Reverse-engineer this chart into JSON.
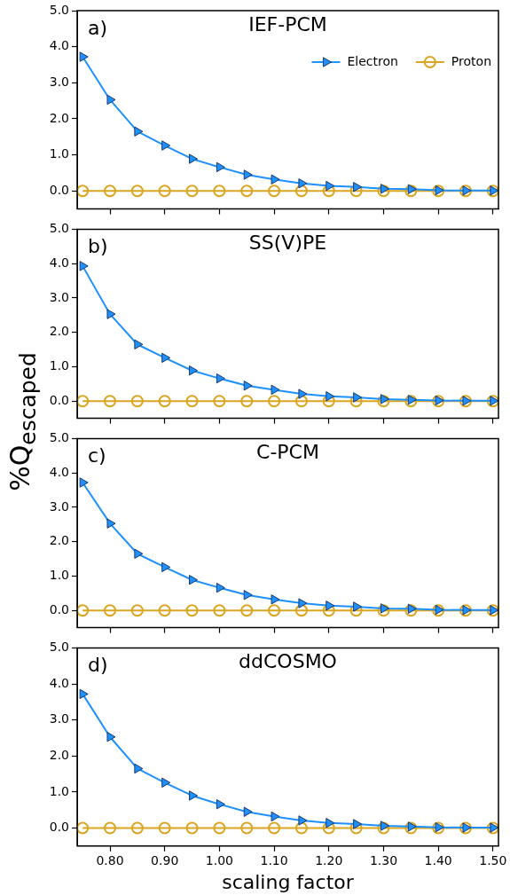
{
  "chart_data": [
    {
      "type": "line",
      "title": "IEF-PCM",
      "annotations": [
        "a)"
      ],
      "ylabel": "%Q$_{escaped}$",
      "x": [
        0.75,
        0.8,
        0.85,
        0.9,
        0.95,
        1.0,
        1.05,
        1.1,
        1.15,
        1.2,
        1.25,
        1.3,
        1.35,
        1.4,
        1.45,
        1.5
      ],
      "series": [
        {
          "name": "Electron",
          "color": "#1e90ff",
          "marker": "triangle",
          "values": [
            3.72,
            2.53,
            1.65,
            1.26,
            0.89,
            0.66,
            0.45,
            0.32,
            0.21,
            0.14,
            0.11,
            0.06,
            0.05,
            0.02,
            0.01,
            0.01
          ]
        },
        {
          "name": "Proton",
          "color": "#daa520",
          "marker": "circle",
          "values": [
            0,
            0,
            0,
            0,
            0,
            0,
            0,
            0,
            0,
            0,
            0,
            0,
            0,
            0,
            0,
            0
          ]
        }
      ],
      "xlim": [
        0.74,
        1.51
      ],
      "xticks": [
        {
          "value": 0.8,
          "label": null
        },
        {
          "value": 0.9,
          "label": null
        },
        {
          "value": 1.0,
          "label": null
        },
        {
          "value": 1.1,
          "label": null
        },
        {
          "value": 1.2,
          "label": null
        },
        {
          "value": 1.3,
          "label": null
        },
        {
          "value": 1.4,
          "label": null
        },
        {
          "value": 1.5,
          "label": null
        }
      ],
      "ylim": [
        -0.5,
        5.0
      ],
      "yticks": [
        {
          "value": 0,
          "label": "0.0"
        },
        {
          "value": 1,
          "label": "1.0"
        },
        {
          "value": 2,
          "label": "2.0"
        },
        {
          "value": 3,
          "label": "3.0"
        },
        {
          "value": 4,
          "label": "4.0"
        },
        {
          "value": 5,
          "label": "5.0"
        }
      ],
      "tick_labels": "y",
      "legend": "top right",
      "grid": false,
      "line_style": "solid"
    },
    {
      "type": "line",
      "title": "SS(V)PE",
      "annotations": [
        "b)"
      ],
      "x": [
        0.75,
        0.8,
        0.85,
        0.9,
        0.95,
        1.0,
        1.05,
        1.1,
        1.15,
        1.2,
        1.25,
        1.3,
        1.35,
        1.4,
        1.45,
        1.5
      ],
      "series": [
        {
          "color": "#1e90ff",
          "marker": "triangle",
          "values": [
            3.93,
            2.53,
            1.65,
            1.26,
            0.89,
            0.66,
            0.45,
            0.33,
            0.21,
            0.14,
            0.11,
            0.06,
            0.04,
            0.02,
            0.01,
            0.01
          ]
        },
        {
          "color": "#daa520",
          "marker": "circle",
          "values": [
            0,
            0,
            0,
            0,
            0,
            0,
            0,
            0,
            0,
            0,
            0,
            0,
            0,
            0,
            0,
            0
          ]
        }
      ],
      "xlim": [
        0.74,
        1.51
      ],
      "xticks": [
        {
          "value": 0.8,
          "label": null
        },
        {
          "value": 0.9,
          "label": null
        },
        {
          "value": 1.0,
          "label": null
        },
        {
          "value": 1.1,
          "label": null
        },
        {
          "value": 1.2,
          "label": null
        },
        {
          "value": 1.3,
          "label": null
        },
        {
          "value": 1.4,
          "label": null
        },
        {
          "value": 1.5,
          "label": null
        }
      ],
      "ylim": [
        -0.5,
        5.0
      ],
      "yticks": [
        {
          "value": 0,
          "label": "0.0"
        },
        {
          "value": 1,
          "label": "1.0"
        },
        {
          "value": 2,
          "label": "2.0"
        },
        {
          "value": 3,
          "label": "3.0"
        },
        {
          "value": 4,
          "label": "4.0"
        },
        {
          "value": 5,
          "label": "5.0"
        }
      ],
      "tick_labels": "y",
      "grid": false,
      "line_style": "solid"
    },
    {
      "type": "line",
      "title": "C-PCM",
      "annotations": [
        "c)"
      ],
      "x": [
        0.75,
        0.8,
        0.85,
        0.9,
        0.95,
        1.0,
        1.05,
        1.1,
        1.15,
        1.2,
        1.25,
        1.3,
        1.35,
        1.4,
        1.45,
        1.5
      ],
      "series": [
        {
          "color": "#1e90ff",
          "marker": "triangle",
          "values": [
            3.72,
            2.53,
            1.65,
            1.26,
            0.89,
            0.66,
            0.45,
            0.32,
            0.21,
            0.14,
            0.11,
            0.06,
            0.05,
            0.02,
            0.01,
            0.01
          ]
        },
        {
          "color": "#daa520",
          "marker": "circle",
          "values": [
            0,
            0,
            0,
            0,
            0,
            0,
            0,
            0,
            0,
            0,
            0,
            0,
            0,
            0,
            0,
            0
          ]
        }
      ],
      "xlim": [
        0.74,
        1.51
      ],
      "xticks": [
        {
          "value": 0.8,
          "label": null
        },
        {
          "value": 0.9,
          "label": null
        },
        {
          "value": 1.0,
          "label": null
        },
        {
          "value": 1.1,
          "label": null
        },
        {
          "value": 1.2,
          "label": null
        },
        {
          "value": 1.3,
          "label": null
        },
        {
          "value": 1.4,
          "label": null
        },
        {
          "value": 1.5,
          "label": null
        }
      ],
      "ylim": [
        -0.5,
        5.0
      ],
      "yticks": [
        {
          "value": 0,
          "label": "0.0"
        },
        {
          "value": 1,
          "label": "1.0"
        },
        {
          "value": 2,
          "label": "2.0"
        },
        {
          "value": 3,
          "label": "3.0"
        },
        {
          "value": 4,
          "label": "4.0"
        },
        {
          "value": 5,
          "label": "5.0"
        }
      ],
      "tick_labels": "y",
      "grid": false,
      "line_style": "solid"
    },
    {
      "type": "line",
      "title": "ddCOSMO",
      "annotations": [
        "d)"
      ],
      "xlabel": "scaling factor",
      "x": [
        0.75,
        0.8,
        0.85,
        0.9,
        0.95,
        1.0,
        1.05,
        1.1,
        1.15,
        1.2,
        1.25,
        1.3,
        1.35,
        1.4,
        1.45,
        1.5
      ],
      "series": [
        {
          "color": "#1e90ff",
          "marker": "triangle",
          "values": [
            3.72,
            2.53,
            1.65,
            1.26,
            0.9,
            0.66,
            0.45,
            0.32,
            0.21,
            0.14,
            0.11,
            0.06,
            0.04,
            0.02,
            0.01,
            0.01
          ]
        },
        {
          "color": "#daa520",
          "marker": "circle",
          "values": [
            0,
            0,
            0,
            0,
            0,
            0,
            0,
            0,
            0,
            0,
            0,
            0,
            0,
            0,
            0,
            0
          ]
        }
      ],
      "xlim": [
        0.74,
        1.51
      ],
      "xticks": [
        {
          "value": 0.8,
          "label": "0.80"
        },
        {
          "value": 0.9,
          "label": "0.90"
        },
        {
          "value": 1.0,
          "label": "1.00"
        },
        {
          "value": 1.1,
          "label": "1.10"
        },
        {
          "value": 1.2,
          "label": "1.20"
        },
        {
          "value": 1.3,
          "label": "1.30"
        },
        {
          "value": 1.4,
          "label": "1.40"
        },
        {
          "value": 1.5,
          "label": "1.50"
        }
      ],
      "ylim": [
        -0.5,
        5.0
      ],
      "yticks": [
        {
          "value": 0,
          "label": "0.0"
        },
        {
          "value": 1,
          "label": "1.0"
        },
        {
          "value": 2,
          "label": "2.0"
        },
        {
          "value": 3,
          "label": "3.0"
        },
        {
          "value": 4,
          "label": "4.0"
        },
        {
          "value": 5,
          "label": "5.0"
        }
      ],
      "grid": false,
      "line_style": "solid"
    }
  ]
}
